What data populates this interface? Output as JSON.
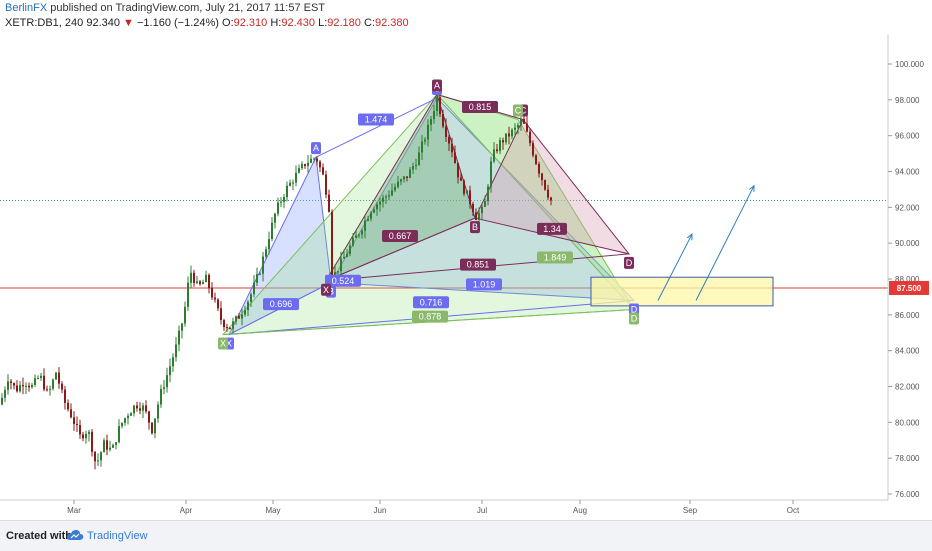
{
  "header": {
    "author": "BerlinFX",
    "published_text": "published on TradingView.com, July 21, 2017 11:57 EST",
    "symbol": "XETR:DB1, 240",
    "last": "92.340",
    "change_arrow": "▼",
    "change": "−1.160 (−1.24%)",
    "o_label": "O:",
    "o": "92.310",
    "h_label": "H:",
    "h": "92.430",
    "l_label": "L:",
    "l": "92.180",
    "c_label": "C:",
    "c": "92.380"
  },
  "footer": {
    "created_with": "Created with",
    "brand": "TradingView"
  },
  "chart_data": {
    "type": "candlestick",
    "symbol": "XETR:DB1",
    "ylim": [
      75.5,
      101.5
    ],
    "y_ticks": [
      "100.000",
      "98.000",
      "96.000",
      "94.000",
      "92.000",
      "90.000",
      "88.000",
      "86.000",
      "84.000",
      "82.000",
      "80.000",
      "78.000",
      "76.000"
    ],
    "x_ticks": [
      "Mar",
      "Apr",
      "May",
      "Jun",
      "Jul",
      "Aug",
      "Sep",
      "Oct"
    ],
    "grid": false,
    "price_line": {
      "value": 87.5,
      "label": "87.500",
      "color": "#e53935"
    },
    "last_price_dotted": 92.38,
    "price_path": [
      [
        0,
        81.0
      ],
      [
        8,
        82.5
      ],
      [
        16,
        81.8
      ],
      [
        24,
        82.3
      ],
      [
        32,
        82.0
      ],
      [
        40,
        82.6
      ],
      [
        48,
        81.5
      ],
      [
        56,
        82.8
      ],
      [
        64,
        81.2
      ],
      [
        72,
        80.3
      ],
      [
        80,
        79.2
      ],
      [
        88,
        79.6
      ],
      [
        96,
        77.6
      ],
      [
        104,
        78.8
      ],
      [
        112,
        78.4
      ],
      [
        120,
        79.8
      ],
      [
        128,
        80.5
      ],
      [
        136,
        81.0
      ],
      [
        144,
        80.8
      ],
      [
        152,
        79.6
      ],
      [
        160,
        81.5
      ],
      [
        168,
        82.8
      ],
      [
        176,
        84.2
      ],
      [
        184,
        86.0
      ],
      [
        190,
        88.5
      ],
      [
        198,
        87.5
      ],
      [
        206,
        88.0
      ],
      [
        214,
        86.8
      ],
      [
        222,
        85.6
      ],
      [
        230,
        85.3
      ],
      [
        240,
        86.0
      ],
      [
        250,
        87.0
      ],
      [
        260,
        88.5
      ],
      [
        268,
        90.2
      ],
      [
        276,
        91.8
      ],
      [
        286,
        93.0
      ],
      [
        296,
        93.8
      ],
      [
        306,
        94.5
      ],
      [
        316,
        94.8
      ],
      [
        324,
        93.6
      ],
      [
        329,
        92.0
      ],
      [
        331,
        87.9
      ],
      [
        340,
        88.8
      ],
      [
        350,
        89.8
      ],
      [
        360,
        90.7
      ],
      [
        372,
        92.0
      ],
      [
        384,
        92.5
      ],
      [
        396,
        93.2
      ],
      [
        408,
        93.8
      ],
      [
        418,
        94.8
      ],
      [
        428,
        96.4
      ],
      [
        437,
        98.1
      ],
      [
        444,
        96.5
      ],
      [
        452,
        95.2
      ],
      [
        460,
        93.4
      ],
      [
        468,
        92.6
      ],
      [
        476,
        91.5
      ],
      [
        484,
        91.9
      ],
      [
        492,
        94.8
      ],
      [
        500,
        95.6
      ],
      [
        508,
        96.0
      ],
      [
        516,
        96.4
      ],
      [
        522,
        96.9
      ],
      [
        530,
        95.6
      ],
      [
        538,
        94.2
      ],
      [
        546,
        93.0
      ],
      [
        551,
        92.38
      ]
    ],
    "patterns": [
      {
        "name": "blue",
        "color": "#6c6cf0",
        "points": [
          {
            "label": "X",
            "x": 229,
            "y": 84.9
          },
          {
            "label": "A",
            "x": 316,
            "y": 94.8
          },
          {
            "label": "B",
            "x": 331,
            "y": 87.8
          },
          {
            "label": "C",
            "x": 437,
            "y": 98.1
          },
          {
            "label": "D",
            "x": 634,
            "y": 86.8
          }
        ],
        "ratios": [
          {
            "text": "1.474",
            "x": 376,
            "y": 96.9
          },
          {
            "text": "0.696",
            "x": 281,
            "y": 86.6
          },
          {
            "text": "1.019",
            "x": 484,
            "y": 87.7
          },
          {
            "text": "0.716",
            "x": 431,
            "y": 86.7
          },
          {
            "text": "0.524",
            "x": 343,
            "y": 87.9
          }
        ]
      },
      {
        "name": "purple",
        "color": "#7b2d5a",
        "points": [
          {
            "label": "X",
            "x": 326,
            "y": 87.9
          },
          {
            "label": "A",
            "x": 437,
            "y": 98.3
          },
          {
            "label": "B",
            "x": 475,
            "y": 91.4
          },
          {
            "label": "C",
            "x": 523,
            "y": 96.9
          },
          {
            "label": "D",
            "x": 629,
            "y": 89.4
          }
        ],
        "ratios": [
          {
            "text": "0.815",
            "x": 480,
            "y": 97.6
          },
          {
            "text": "0.667",
            "x": 400,
            "y": 90.4
          },
          {
            "text": "0.851",
            "x": 478,
            "y": 88.8
          },
          {
            "text": "1.34",
            "x": 552,
            "y": 90.8
          }
        ]
      },
      {
        "name": "green",
        "color": "#7cbf5c",
        "points": [
          {
            "label": "X",
            "x": 223,
            "y": 84.9
          },
          {
            "label": "C",
            "x": 518,
            "y": 96.9
          },
          {
            "label": "D",
            "x": 634,
            "y": 86.3
          }
        ],
        "ratios": [
          {
            "text": "0.878",
            "x": 430,
            "y": 85.9
          },
          {
            "text": "1.849",
            "x": 555,
            "y": 89.2
          }
        ]
      }
    ],
    "target_zone": {
      "x0": 591,
      "x1": 773,
      "y0": 86.5,
      "y1": 88.1
    },
    "arrows": [
      {
        "x0": 658,
        "y0": 86.8,
        "x1": 692,
        "y1": 90.5
      },
      {
        "x0": 696,
        "y0": 86.8,
        "x1": 754,
        "y1": 93.2
      }
    ]
  }
}
